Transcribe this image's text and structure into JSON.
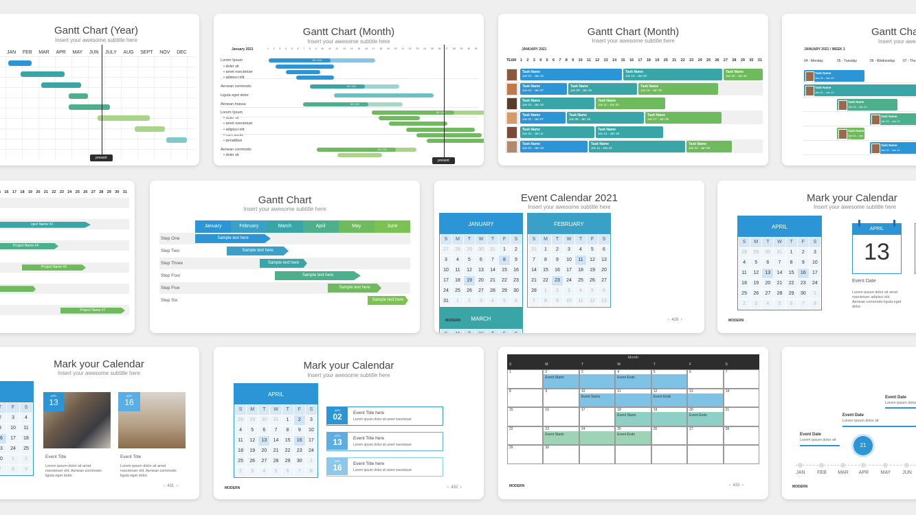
{
  "colors": {
    "blue": "#2b95d6",
    "teal": "#3aa5a6",
    "tealgreen": "#4daf8c",
    "green": "#6fba5c",
    "lightgreen": "#a9d48a",
    "lightblue": "#8cc4e6",
    "dark": "#2d2d2d"
  },
  "c1": {
    "title": "Gantt Chart (Year)",
    "subtitle": "Insert your awesome subtitle here",
    "months": [
      "JAN",
      "FEB",
      "MAR",
      "APR",
      "MAY",
      "JUN",
      "JULY",
      "AUG",
      "SEPT",
      "NOV",
      "DEC"
    ],
    "present": "present"
  },
  "c2": {
    "title": "Gantt Chart (Month)",
    "subtitle": "Insert your awesome subtitle here",
    "month": "January 2021",
    "days": [
      "1",
      "2",
      "3",
      "4",
      "5",
      "6",
      "7",
      "8",
      "9",
      "10",
      "11",
      "12",
      "13",
      "14",
      "15",
      "16",
      "17",
      "18",
      "19",
      "20",
      "21",
      "22",
      "23",
      "24",
      "25",
      "26",
      "27",
      "28",
      "29",
      "30",
      "31"
    ],
    "rows": [
      "Lorem Ipsum",
      "doler sit",
      "amet nsectetuer",
      "adipisci elit",
      "Aenean commodo",
      "Ligula eget dolor",
      "Aenean massa",
      "Lorem Ipsum",
      "doler sit",
      "amet nsectetuer",
      "adipisci elit",
      "cum sociis",
      "penatibus",
      "Aenean commodo",
      "doler sit"
    ],
    "bar_label": "60 / 100",
    "present": "present"
  },
  "c3": {
    "title": "Gantt Chart (Month)",
    "subtitle": "Insert your awesome subtitle here",
    "month": "JANUARY 2021",
    "team": "TEAM",
    "days": [
      "1",
      "2",
      "3",
      "4",
      "5",
      "6",
      "7",
      "8",
      "9",
      "10",
      "11",
      "12",
      "13",
      "14",
      "15",
      "16",
      "17",
      "18",
      "19",
      "20",
      "21",
      "22",
      "23",
      "24",
      "25",
      "26",
      "27",
      "28",
      "29",
      "30",
      "31"
    ],
    "tasks": [
      [
        {
          "n": "Task Name",
          "d": "Jan 01 - Jan 12"
        },
        {
          "n": "Task Name",
          "d": "Jan 13 - Jan 23"
        },
        {
          "n": "Task Name",
          "d": "Jan 26 - Jan 31"
        }
      ],
      [
        {
          "n": "Task Name",
          "d": "Jan 01 - Jan 07"
        },
        {
          "n": "Task Name",
          "d": "Jan 08 - Jan 15"
        },
        {
          "n": "Task Name",
          "d": "Jan 16 - Jan 25"
        }
      ],
      [
        {
          "n": "Task Name",
          "d": "Jan 01 - Jan 10"
        },
        {
          "n": "Task Name",
          "d": "Jan 11 - Jan 20"
        }
      ],
      [
        {
          "n": "Task Name",
          "d": "Jan 01 - Jan 07"
        },
        {
          "n": "Task Name",
          "d": "Jan 08 - Jan 16"
        },
        {
          "n": "Task Name",
          "d": "Jan 17 - Jan 25"
        }
      ],
      [
        {
          "n": "Task Name",
          "d": "Jan 01 - Jan 11"
        },
        {
          "n": "Task Name",
          "d": "Jan 12 - Jan 18"
        }
      ],
      [
        {
          "n": "Task Name",
          "d": "Jan 01 - Jan 10"
        },
        {
          "n": "Task Name",
          "d": "Jan 11 - Jan 22"
        },
        {
          "n": "Task Name",
          "d": "Jan 22 - Jan 28"
        }
      ]
    ]
  },
  "c4": {
    "title": "Gantt Cha",
    "subtitle": "Insert your aweso",
    "week": "JANUARY 2021 / WEEK 1",
    "days": [
      "04 - Monday",
      "05 - Tuesday",
      "06 - Wednesday",
      "07 - Thu"
    ],
    "task": "Task Name",
    "date": "Jan 01 - Jan 12"
  },
  "c5": {
    "days": [
      "5",
      "16",
      "17",
      "18",
      "19",
      "20",
      "21",
      "22",
      "23",
      "24",
      "25",
      "26",
      "27",
      "28",
      "29",
      "30",
      "31"
    ],
    "projects": [
      "oject Name #3",
      "Project Name #4",
      "Project Name #5",
      "Project Name #7"
    ]
  },
  "c6": {
    "title": "Gantt Chart",
    "subtitle": "Insert your awesome subtitle here",
    "months": [
      "January",
      "February",
      "March",
      "April",
      "May",
      "June"
    ],
    "steps": [
      "Step One",
      "Step Two",
      "Step Three",
      "Step Four",
      "Step Five",
      "Step Six"
    ],
    "sample": "Sample text here"
  },
  "c7": {
    "title": "Event Calendar 2021",
    "subtitle": "Insert your awesome subtitle here",
    "months": [
      "JANUARY",
      "FEBRUARY",
      "MARCH"
    ],
    "dow": [
      "S",
      "M",
      "T",
      "W",
      "T",
      "F",
      "S"
    ],
    "footer": "MODERN",
    "page": "429"
  },
  "c8": {
    "title": "Mark your Calendar",
    "subtitle": "Insert your awesome subtitle here",
    "month": "APRIL",
    "day_month": "APRIL",
    "day": "13",
    "event_date": "Event Date",
    "body": "Lorem ipsum dolor sit amet nsectetuer adipisci elit. Aenean commodo ligula eget dolor.",
    "footer": "MODERN"
  },
  "c9": {
    "title": "Mark your Calendar",
    "subtitle": "Insert your awesome subtitle here",
    "d1m": "APR",
    "d1": "13",
    "d2m": "APR",
    "d2": "16",
    "event_title": "Event Title",
    "body": "Lorem ipsum dolor sit amet nsectetuer elit. Aenean commodo ligula eget dolor.",
    "page": "431"
  },
  "c10": {
    "title": "Mark your Calendar",
    "subtitle": "Insert your awesome subtitle here",
    "month": "APRIL",
    "events": [
      {
        "m": "APR",
        "d": "02",
        "t": "Event Title here",
        "b": "Lorem ipsum dolor sit amet nsectetuer"
      },
      {
        "m": "APR",
        "d": "13",
        "t": "Event Title here",
        "b": "Lorem ipsum dolor sit amet nsectetuer"
      },
      {
        "m": "APR",
        "d": "16",
        "t": "Event Title here",
        "b": "Lorem ipsum dolor sit amet nsectetuer"
      }
    ],
    "footer": "MODERN",
    "page": "432"
  },
  "c11": {
    "month": "Month",
    "dow": [
      "S",
      "M",
      "T",
      "W",
      "T",
      "F",
      "S"
    ],
    "starts": "Event Starts",
    "ends": "Event Ends",
    "footer": "MODERN",
    "page": "433"
  },
  "c12": {
    "months": [
      "JAN",
      "FEB",
      "MAR",
      "APR",
      "MAY",
      "JUN"
    ],
    "event_date": "Event Date",
    "lorem": "Lorem ipsum dolor sit",
    "marker": "21",
    "footer": "MODERN"
  }
}
